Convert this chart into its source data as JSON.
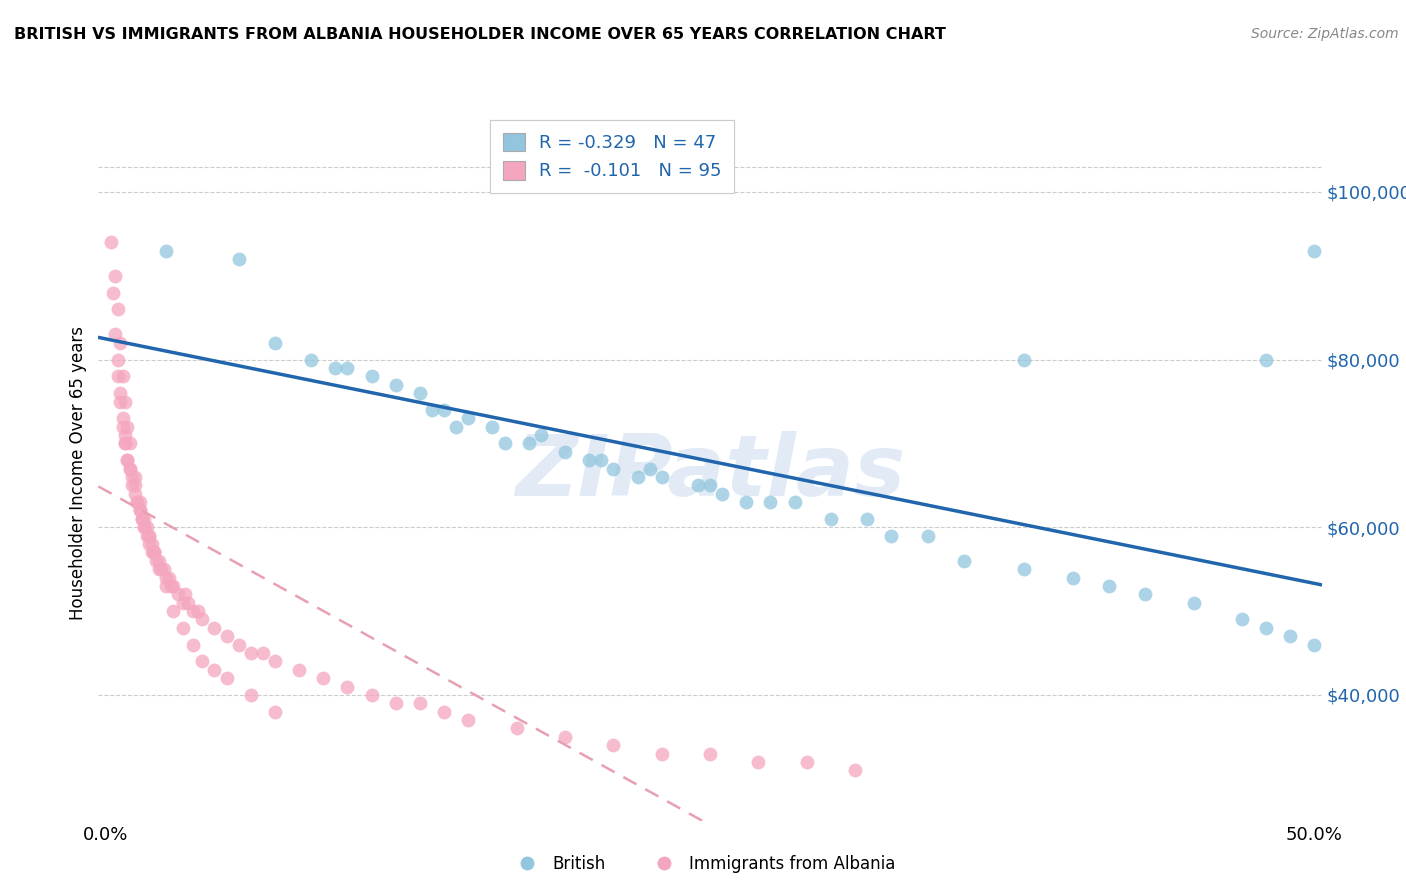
{
  "title": "BRITISH VS IMMIGRANTS FROM ALBANIA HOUSEHOLDER INCOME OVER 65 YEARS CORRELATION CHART",
  "source": "Source: ZipAtlas.com",
  "ylabel": "Householder Income Over 65 years",
  "legend_british": "R = -0.329   N = 47",
  "legend_albania": "R =  -0.101   N = 95",
  "legend_label_british": "British",
  "legend_label_albania": "Immigrants from Albania",
  "color_british": "#92c5de",
  "color_albania": "#f4a6be",
  "color_british_line": "#2166ac",
  "color_albania_line": "#e8a0b0",
  "ytick_labels": [
    "$40,000",
    "$60,000",
    "$80,000",
    "$100,000"
  ],
  "ytick_values": [
    40000,
    60000,
    80000,
    100000
  ],
  "ylim": [
    25000,
    108000
  ],
  "xlim": [
    -0.003,
    0.503
  ],
  "british_x": [
    0.025,
    0.055,
    0.07,
    0.085,
    0.095,
    0.1,
    0.11,
    0.12,
    0.13,
    0.135,
    0.14,
    0.145,
    0.15,
    0.16,
    0.165,
    0.175,
    0.18,
    0.19,
    0.2,
    0.205,
    0.21,
    0.22,
    0.225,
    0.23,
    0.245,
    0.25,
    0.255,
    0.265,
    0.275,
    0.285,
    0.3,
    0.315,
    0.325,
    0.34,
    0.355,
    0.38,
    0.4,
    0.415,
    0.43,
    0.45,
    0.47,
    0.48,
    0.49,
    0.5,
    0.38,
    0.48,
    0.5
  ],
  "british_y": [
    93000,
    92000,
    82000,
    80000,
    79000,
    79000,
    78000,
    77000,
    76000,
    74000,
    74000,
    72000,
    73000,
    72000,
    70000,
    70000,
    71000,
    69000,
    68000,
    68000,
    67000,
    66000,
    67000,
    66000,
    65000,
    65000,
    64000,
    63000,
    63000,
    63000,
    61000,
    61000,
    59000,
    59000,
    56000,
    55000,
    54000,
    53000,
    52000,
    51000,
    49000,
    48000,
    47000,
    46000,
    80000,
    80000,
    93000
  ],
  "albania_x": [
    0.002,
    0.003,
    0.004,
    0.005,
    0.005,
    0.006,
    0.006,
    0.007,
    0.007,
    0.008,
    0.008,
    0.008,
    0.009,
    0.009,
    0.01,
    0.01,
    0.011,
    0.011,
    0.012,
    0.012,
    0.013,
    0.013,
    0.014,
    0.014,
    0.015,
    0.015,
    0.016,
    0.016,
    0.017,
    0.017,
    0.018,
    0.018,
    0.019,
    0.019,
    0.02,
    0.02,
    0.021,
    0.022,
    0.023,
    0.024,
    0.025,
    0.026,
    0.027,
    0.028,
    0.03,
    0.032,
    0.034,
    0.036,
    0.038,
    0.04,
    0.045,
    0.05,
    0.055,
    0.06,
    0.065,
    0.07,
    0.08,
    0.09,
    0.1,
    0.11,
    0.12,
    0.13,
    0.14,
    0.15,
    0.17,
    0.19,
    0.21,
    0.23,
    0.25,
    0.27,
    0.29,
    0.31,
    0.033,
    0.004,
    0.005,
    0.006,
    0.007,
    0.008,
    0.009,
    0.01,
    0.012,
    0.014,
    0.016,
    0.018,
    0.02,
    0.022,
    0.025,
    0.028,
    0.032,
    0.036,
    0.04,
    0.045,
    0.05,
    0.06,
    0.07
  ],
  "albania_y": [
    94000,
    88000,
    83000,
    80000,
    78000,
    76000,
    75000,
    73000,
    72000,
    71000,
    70000,
    70000,
    68000,
    68000,
    67000,
    67000,
    66000,
    65000,
    65000,
    64000,
    63000,
    63000,
    62000,
    62000,
    61000,
    61000,
    60000,
    60000,
    60000,
    59000,
    59000,
    58000,
    58000,
    57000,
    57000,
    57000,
    56000,
    56000,
    55000,
    55000,
    54000,
    54000,
    53000,
    53000,
    52000,
    51000,
    51000,
    50000,
    50000,
    49000,
    48000,
    47000,
    46000,
    45000,
    45000,
    44000,
    43000,
    42000,
    41000,
    40000,
    39000,
    39000,
    38000,
    37000,
    36000,
    35000,
    34000,
    33000,
    33000,
    32000,
    32000,
    31000,
    52000,
    90000,
    86000,
    82000,
    78000,
    75000,
    72000,
    70000,
    66000,
    63000,
    61000,
    59000,
    57000,
    55000,
    53000,
    50000,
    48000,
    46000,
    44000,
    43000,
    42000,
    40000,
    38000
  ]
}
